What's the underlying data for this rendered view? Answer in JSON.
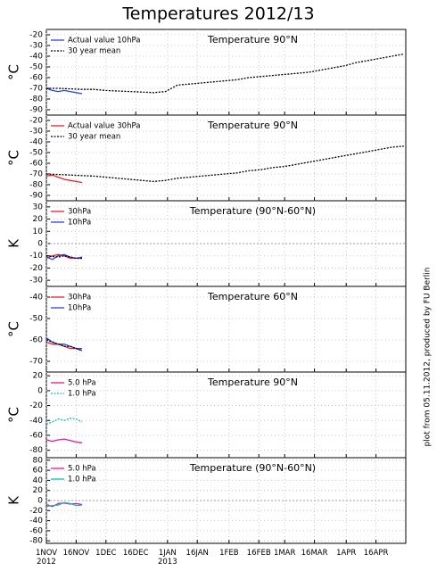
{
  "title": "Temperatures 2012/13",
  "footer": "plot from 05.11.2012, produced by FU Berlin",
  "chart_data": [
    {
      "type": "line",
      "title": "Temperature 90°N",
      "ylabel": "°C",
      "xlim": [
        0,
        181
      ],
      "ylim": [
        -95,
        -15
      ],
      "yticks": [
        -20,
        -30,
        -40,
        -50,
        -60,
        -70,
        -80,
        -90
      ],
      "grid": true,
      "zeroline": false,
      "series": [
        {
          "name": "Actual value 10hPa",
          "color": "#2244ee",
          "style": "solid",
          "x": [
            0,
            3,
            6,
            9,
            12,
            15,
            18
          ],
          "values": [
            -70,
            -72,
            -73,
            -72,
            -73,
            -74,
            -75
          ]
        },
        {
          "name": "30 year mean",
          "color": "#000000",
          "style": "dotted",
          "x": [
            0,
            6,
            12,
            18,
            24,
            30,
            36,
            42,
            48,
            54,
            60,
            66,
            72,
            78,
            84,
            90,
            96,
            102,
            108,
            114,
            120,
            126,
            132,
            138,
            144,
            150,
            156,
            162,
            168,
            174,
            180
          ],
          "values": [
            -70,
            -70,
            -70.5,
            -71,
            -71,
            -72,
            -72.5,
            -73,
            -73.5,
            -74,
            -73,
            -67,
            -66,
            -65,
            -64,
            -63,
            -62,
            -60,
            -59,
            -58,
            -57,
            -56,
            -55,
            -53,
            -51,
            -49,
            -46,
            -44,
            -42,
            -40,
            -38
          ]
        }
      ]
    },
    {
      "type": "line",
      "title": "Temperature 90°N",
      "ylabel": "°C",
      "xlim": [
        0,
        181
      ],
      "ylim": [
        -95,
        -15
      ],
      "yticks": [
        -20,
        -30,
        -40,
        -50,
        -60,
        -70,
        -80,
        -90
      ],
      "grid": true,
      "zeroline": false,
      "series": [
        {
          "name": "Actual value 30hPa",
          "color": "#ee2222",
          "style": "solid",
          "x": [
            0,
            3,
            6,
            9,
            12,
            15,
            18
          ],
          "values": [
            -72,
            -71,
            -73,
            -75,
            -76,
            -77,
            -78
          ]
        },
        {
          "name": "30 year mean",
          "color": "#000000",
          "style": "dotted",
          "x": [
            0,
            6,
            12,
            18,
            24,
            30,
            36,
            42,
            48,
            54,
            60,
            66,
            72,
            78,
            84,
            90,
            96,
            102,
            108,
            114,
            120,
            126,
            132,
            138,
            144,
            150,
            156,
            162,
            168,
            174,
            180
          ],
          "values": [
            -70,
            -70.5,
            -71,
            -71.5,
            -72,
            -73,
            -74,
            -75,
            -76,
            -77,
            -76,
            -74,
            -73,
            -72,
            -71,
            -70,
            -69,
            -67,
            -66,
            -64,
            -63,
            -61,
            -59,
            -57,
            -55,
            -53,
            -51,
            -49,
            -47,
            -45,
            -44
          ]
        }
      ]
    },
    {
      "type": "line",
      "title": "Temperature (90°N-60°N)",
      "ylabel": "K",
      "xlim": [
        0,
        181
      ],
      "ylim": [
        -35,
        35
      ],
      "yticks": [
        30,
        20,
        10,
        0,
        -10,
        -20,
        -30
      ],
      "grid": true,
      "zeroline": true,
      "series": [
        {
          "name": "30hPa",
          "color": "#ee2222",
          "style": "solid",
          "x": [
            0,
            3,
            6,
            9,
            12,
            15,
            18
          ],
          "values": [
            -12,
            -10,
            -9,
            -10,
            -12,
            -12,
            -12
          ]
        },
        {
          "name": "10hPa",
          "color": "#2244ee",
          "style": "solid",
          "x": [
            0,
            3,
            6,
            9,
            12,
            15,
            18
          ],
          "values": [
            -11,
            -13,
            -10,
            -9,
            -11,
            -12,
            -11
          ]
        },
        {
          "color": "#000000",
          "style": "dotted",
          "x": [
            0,
            3,
            6,
            9,
            12,
            15,
            18
          ],
          "values": [
            -10,
            -10.5,
            -11,
            -10,
            -11,
            -12,
            -12
          ]
        }
      ]
    },
    {
      "type": "line",
      "title": "Temperature 60°N",
      "ylabel": "°C",
      "xlim": [
        0,
        181
      ],
      "ylim": [
        -75,
        -35
      ],
      "yticks": [
        -40,
        -50,
        -60,
        -70
      ],
      "grid": true,
      "zeroline": false,
      "series": [
        {
          "name": "30hPa",
          "color": "#ee2222",
          "style": "solid",
          "x": [
            0,
            3,
            6,
            9,
            12,
            15,
            18
          ],
          "values": [
            -61,
            -62,
            -62,
            -63,
            -64,
            -64,
            -65
          ]
        },
        {
          "name": "10hPa",
          "color": "#2244ee",
          "style": "solid",
          "x": [
            0,
            3,
            6,
            9,
            12,
            15,
            18
          ],
          "values": [
            -59,
            -61,
            -62,
            -62,
            -63,
            -64,
            -64
          ]
        },
        {
          "color": "#000000",
          "style": "dotted",
          "x": [
            0,
            3,
            6,
            9,
            12,
            15,
            18
          ],
          "values": [
            -60,
            -61,
            -62,
            -63,
            -63,
            -64,
            -65
          ]
        }
      ]
    },
    {
      "type": "line",
      "title": "Temperature 90°N",
      "ylabel": "°C",
      "xlim": [
        0,
        181
      ],
      "ylim": [
        -90,
        25
      ],
      "yticks": [
        20,
        0,
        -20,
        -40,
        -60,
        -80
      ],
      "grid": true,
      "zeroline": false,
      "series": [
        {
          "name": "5.0 hPa",
          "color": "#ee1199",
          "style": "solid",
          "x": [
            0,
            3,
            6,
            9,
            12,
            15,
            18
          ],
          "values": [
            -66,
            -68,
            -66,
            -65,
            -67,
            -69,
            -70
          ]
        },
        {
          "name": "1.0 hPa",
          "color": "#11bbbb",
          "style": "dotted",
          "x": [
            0,
            3,
            6,
            9,
            12,
            15,
            18
          ],
          "values": [
            -45,
            -42,
            -38,
            -40,
            -37,
            -38,
            -42
          ]
        }
      ]
    },
    {
      "type": "line",
      "title": "Temperature (90°N-60°N)",
      "ylabel": "K",
      "xlim": [
        0,
        181
      ],
      "ylim": [
        -85,
        85
      ],
      "yticks": [
        80,
        60,
        40,
        20,
        0,
        -20,
        -40,
        -60,
        -80
      ],
      "grid": true,
      "zeroline": true,
      "xticks": [
        {
          "value": 0,
          "label": "1NOV 2012"
        },
        {
          "value": 15,
          "label": "16NOV"
        },
        {
          "value": 30,
          "label": "1DEC"
        },
        {
          "value": 45,
          "label": "16DEC"
        },
        {
          "value": 61,
          "label": "1JAN 2013"
        },
        {
          "value": 76,
          "label": "16JAN"
        },
        {
          "value": 92,
          "label": "1FEB"
        },
        {
          "value": 107,
          "label": "16FEB"
        },
        {
          "value": 120,
          "label": "1MAR"
        },
        {
          "value": 135,
          "label": "16MAR"
        },
        {
          "value": 151,
          "label": "1APR"
        },
        {
          "value": 166,
          "label": "16APR"
        }
      ],
      "series": [
        {
          "name": "5.0 hPa",
          "color": "#ee1199",
          "style": "solid",
          "x": [
            0,
            3,
            6,
            9,
            12,
            15,
            18
          ],
          "values": [
            -8,
            -12,
            -6,
            -5,
            -7,
            -6,
            -8
          ]
        },
        {
          "name": "1.0 hPa",
          "color": "#11bbbb",
          "style": "solid",
          "x": [
            0,
            3,
            6,
            9,
            12,
            15,
            18
          ],
          "values": [
            -12,
            -10,
            -9,
            -4,
            -6,
            -10,
            -9
          ]
        }
      ]
    }
  ]
}
